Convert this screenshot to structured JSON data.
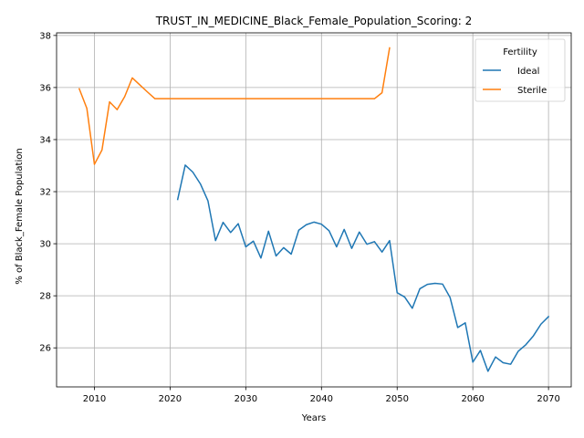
{
  "chart_data": {
    "type": "line",
    "title": "TRUST_IN_MEDICINE_Black_Female_Population_Scoring: 2",
    "xlabel": "Years",
    "ylabel": "% of Black_Female Population",
    "xlim": [
      2005,
      2073
    ],
    "ylim": [
      24.5,
      38.1
    ],
    "xticks": [
      2010,
      2020,
      2030,
      2040,
      2050,
      2060,
      2070
    ],
    "yticks": [
      26,
      28,
      30,
      32,
      34,
      36,
      38
    ],
    "grid": true,
    "legend": {
      "title": "Fertility",
      "position": "top-right"
    },
    "series": [
      {
        "name": "Ideal",
        "color": "#1f77b4",
        "x": [
          2021,
          2022,
          2023,
          2024,
          2025,
          2026,
          2027,
          2028,
          2029,
          2030,
          2031,
          2032,
          2033,
          2034,
          2035,
          2036,
          2037,
          2038,
          2039,
          2040,
          2041,
          2042,
          2043,
          2044,
          2045,
          2046,
          2047,
          2048,
          2049,
          2050,
          2051,
          2052,
          2053,
          2054,
          2055,
          2056,
          2057,
          2058,
          2059,
          2060,
          2061,
          2062,
          2063,
          2064,
          2065,
          2066,
          2067,
          2068,
          2069,
          2070
        ],
        "values": [
          31.7,
          33.02,
          32.75,
          32.3,
          31.65,
          30.12,
          30.82,
          30.43,
          30.77,
          29.88,
          30.1,
          29.45,
          30.48,
          29.53,
          29.85,
          29.6,
          30.52,
          30.73,
          30.83,
          30.75,
          30.5,
          29.88,
          30.55,
          29.82,
          30.45,
          29.98,
          30.08,
          29.68,
          30.12,
          28.12,
          27.95,
          27.52,
          28.27,
          28.44,
          28.48,
          28.45,
          27.93,
          26.78,
          26.96,
          25.45,
          25.9,
          25.1,
          25.65,
          25.43,
          25.37,
          25.87,
          26.12,
          26.46,
          26.91,
          27.2
        ]
      },
      {
        "name": "Sterile",
        "color": "#ff7f0e",
        "x": [
          2008,
          2009,
          2010,
          2011,
          2012,
          2013,
          2014,
          2015,
          2016,
          2017,
          2018,
          2019,
          2020,
          2021,
          2022,
          2023,
          2024,
          2025,
          2026,
          2027,
          2028,
          2029,
          2030,
          2031,
          2032,
          2033,
          2034,
          2035,
          2036,
          2037,
          2038,
          2039,
          2040,
          2041,
          2042,
          2043,
          2044,
          2045,
          2046,
          2047,
          2048,
          2049
        ],
        "values": [
          35.95,
          35.2,
          33.05,
          33.6,
          35.45,
          35.15,
          35.65,
          36.37,
          36.1,
          35.83,
          35.57,
          35.57,
          35.57,
          35.57,
          35.57,
          35.57,
          35.57,
          35.57,
          35.57,
          35.57,
          35.57,
          35.57,
          35.57,
          35.57,
          35.57,
          35.57,
          35.57,
          35.57,
          35.57,
          35.57,
          35.57,
          35.57,
          35.57,
          35.57,
          35.57,
          35.57,
          35.57,
          35.57,
          35.57,
          35.57,
          35.8,
          37.52
        ]
      }
    ]
  }
}
